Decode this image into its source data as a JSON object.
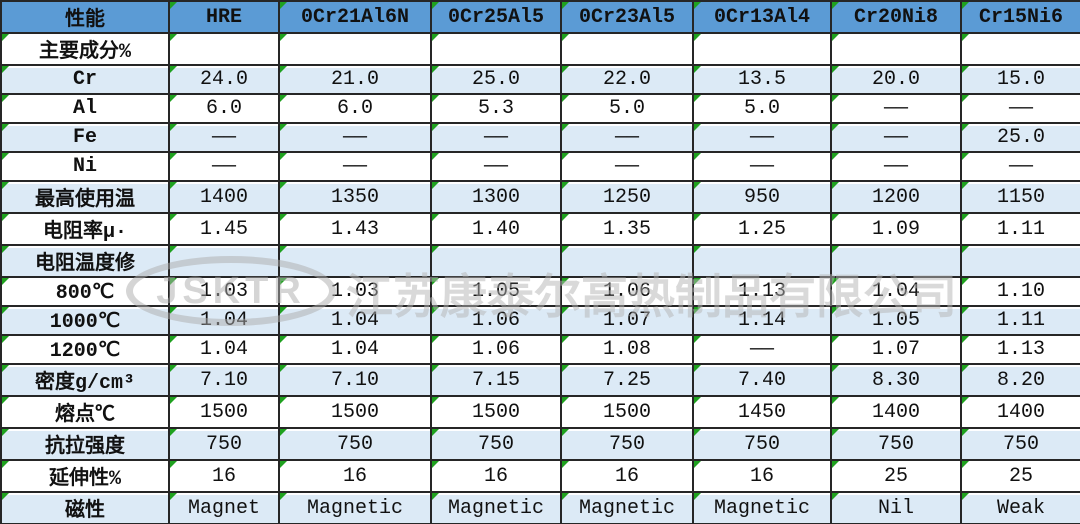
{
  "colors": {
    "header_bg": "#5B9BD5",
    "alt_row_bg": "#DCEAF6",
    "row_bg": "#FFFFFF",
    "border": "#262626",
    "corner_triangle": "#1FA11F",
    "watermark_gray": "#B5B5B5"
  },
  "watermark": {
    "badge_text": "JSKTR",
    "company_text": "江苏康泰尔高热制品有限公司"
  },
  "chart_data": {
    "type": "table",
    "title": "",
    "columns": [
      "性能",
      "HRE",
      "0Cr21Al6N",
      "0Cr25Al5",
      "0Cr23Al5",
      "0Cr13Al4",
      "Cr20Ni8",
      "Cr15Ni6"
    ],
    "rows": [
      {
        "label": "主要成分%",
        "values": [
          "",
          "",
          "",
          "",
          "",
          "",
          ""
        ]
      },
      {
        "label": "Cr",
        "values": [
          "24.0",
          "21.0",
          "25.0",
          "22.0",
          "13.5",
          "20.0",
          "15.0"
        ]
      },
      {
        "label": "Al",
        "values": [
          "6.0",
          "6.0",
          "5.3",
          "5.0",
          "5.0",
          "——",
          "——"
        ]
      },
      {
        "label": "Fe",
        "values": [
          "——",
          "——",
          "——",
          "——",
          "——",
          "——",
          "25.0"
        ]
      },
      {
        "label": "Ni",
        "values": [
          "——",
          "——",
          "——",
          "——",
          "——",
          "——",
          "——"
        ]
      },
      {
        "label": "最高使用温",
        "values": [
          "1400",
          "1350",
          "1300",
          "1250",
          "950",
          "1200",
          "1150"
        ]
      },
      {
        "label": "电阻率μ·",
        "values": [
          "1.45",
          "1.43",
          "1.40",
          "1.35",
          "1.25",
          "1.09",
          "1.11"
        ]
      },
      {
        "label": "电阻温度修",
        "values": [
          "",
          "",
          "",
          "",
          "",
          "",
          ""
        ]
      },
      {
        "label": "800℃",
        "values": [
          "1.03",
          "1.03",
          "1.05",
          "1.06",
          "1.13",
          "1.04",
          "1.10"
        ]
      },
      {
        "label": "1000℃",
        "values": [
          "1.04",
          "1.04",
          "1.06",
          "1.07",
          "1.14",
          "1.05",
          "1.11"
        ]
      },
      {
        "label": "1200℃",
        "values": [
          "1.04",
          "1.04",
          "1.06",
          "1.08",
          "——",
          "1.07",
          "1.13"
        ]
      },
      {
        "label": "密度g/cm³",
        "values": [
          "7.10",
          "7.10",
          "7.15",
          "7.25",
          "7.40",
          "8.30",
          "8.20"
        ]
      },
      {
        "label": "熔点℃",
        "values": [
          "1500",
          "1500",
          "1500",
          "1500",
          "1450",
          "1400",
          "1400"
        ]
      },
      {
        "label": "抗拉强度",
        "values": [
          "750",
          "750",
          "750",
          "750",
          "750",
          "750",
          "750"
        ]
      },
      {
        "label": "延伸性%",
        "values": [
          "16",
          "16",
          "16",
          "16",
          "16",
          "25",
          "25"
        ]
      },
      {
        "label": "磁性",
        "values": [
          "Magnet",
          "Magnetic",
          "Magnetic",
          "Magnetic",
          "Magnetic",
          "Nil",
          "Weak"
        ]
      }
    ]
  }
}
